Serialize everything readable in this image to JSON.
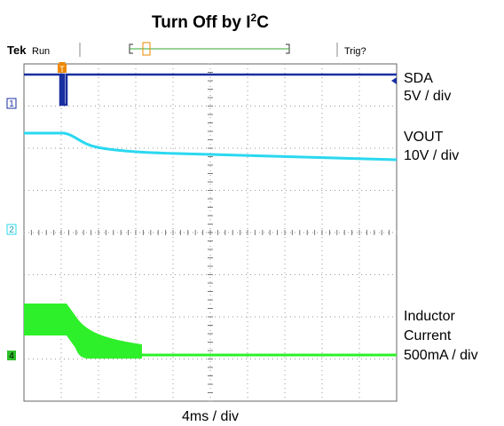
{
  "title": {
    "main": "Turn Off by I",
    "superscript": "2",
    "end": "C"
  },
  "header": {
    "brand": "Tek",
    "status": "Run",
    "trigger": "Trig?"
  },
  "trigger_marker": "T",
  "channels": [
    {
      "marker": "1",
      "labels": [
        "SDA",
        "5V / div"
      ]
    },
    {
      "marker": "2",
      "labels": [
        "VOUT",
        "10V / div"
      ]
    },
    {
      "marker": "4",
      "labels": [
        "Inductor",
        "Current",
        "500mA / div"
      ]
    }
  ],
  "timebase": "4ms / div"
}
